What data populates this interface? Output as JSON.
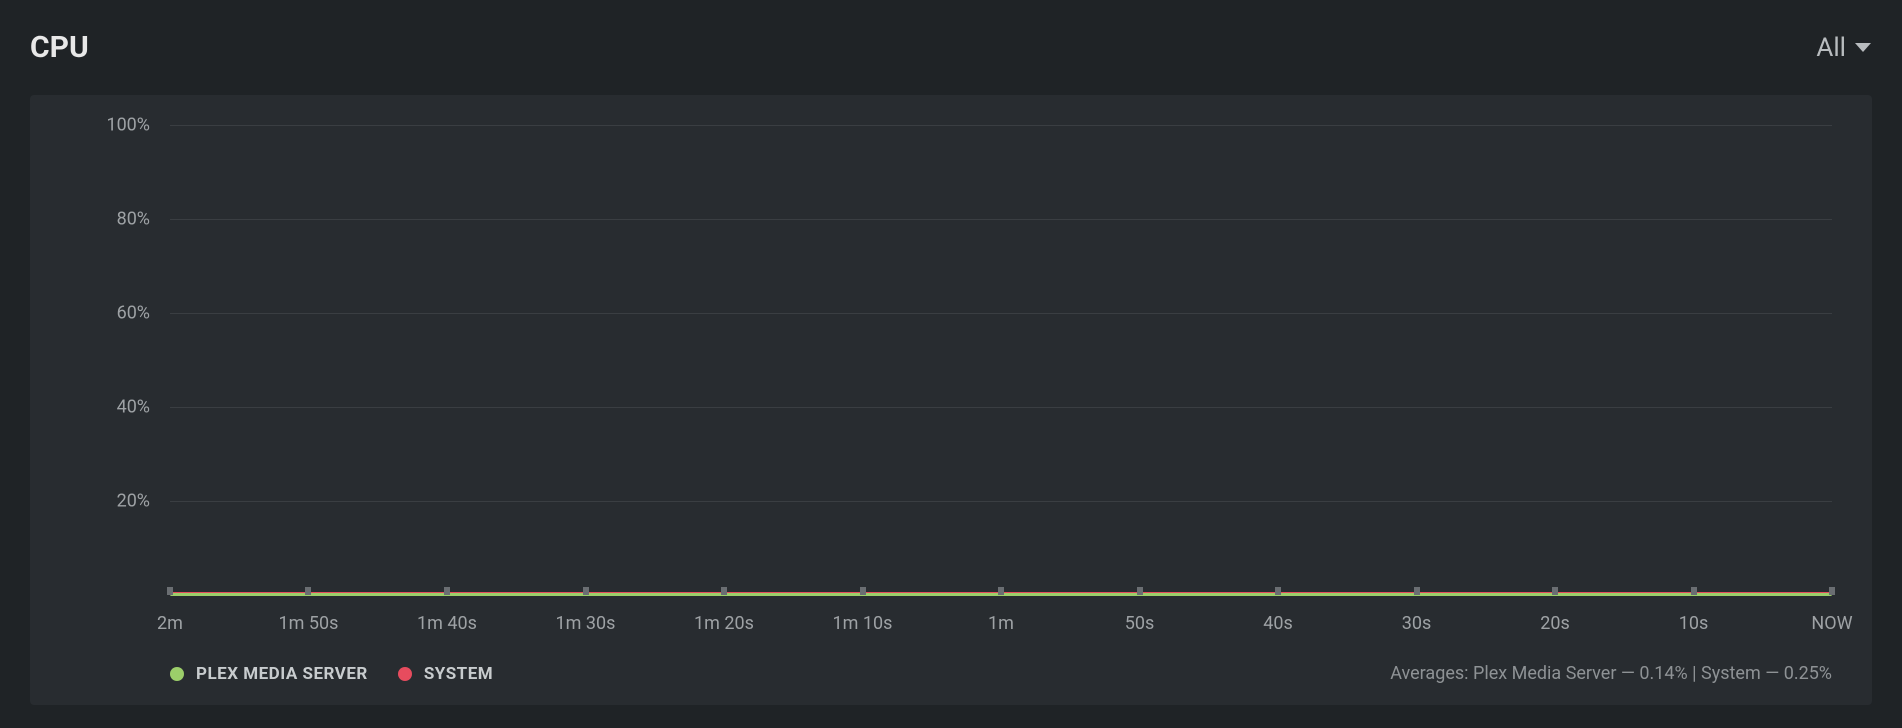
{
  "header": {
    "title": "CPU",
    "filter_label": "All"
  },
  "chart": {
    "type": "line",
    "background_color": "#282c30",
    "grid_color": "#3a3e42",
    "axis_label_color": "#9ea2a5",
    "ylim": [
      0,
      100
    ],
    "y_ticks": [
      {
        "value": 100,
        "label": "100%"
      },
      {
        "value": 80,
        "label": "80%"
      },
      {
        "value": 60,
        "label": "60%"
      },
      {
        "value": 40,
        "label": "40%"
      },
      {
        "value": 20,
        "label": "20%"
      }
    ],
    "x_ticks": [
      "2m",
      "1m 50s",
      "1m 40s",
      "1m 30s",
      "1m 20s",
      "1m 10s",
      "1m",
      "50s",
      "40s",
      "30s",
      "20s",
      "10s",
      "NOW"
    ],
    "series": [
      {
        "name": "PLEX MEDIA SERVER",
        "color": "#9cce6a",
        "value_pct": 0.14,
        "line_width": 3
      },
      {
        "name": "SYSTEM",
        "color": "#e74c5e",
        "value_pct": 0.25,
        "line_width": 3
      }
    ]
  },
  "footer": {
    "averages_text": "Averages: Plex Media Server — 0.14% | System — 0.25%"
  }
}
